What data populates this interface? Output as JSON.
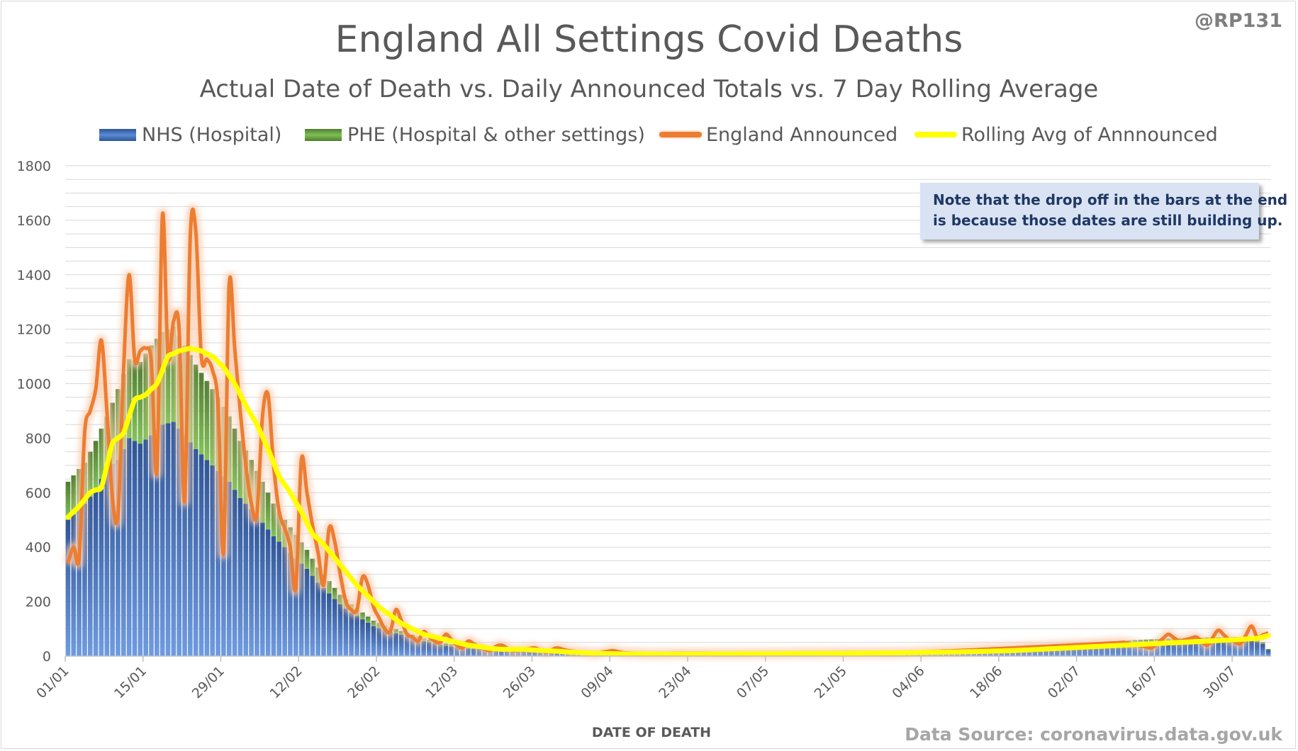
{
  "handle": "@RP131",
  "source": "Data Source: coronavirus.data.gov.uk",
  "note": {
    "line1": "Note that the drop off in the bars at the end",
    "line2": "is because those dates are still building up."
  },
  "colors": {
    "nhs": "#4472c4",
    "phe": "#70ad47",
    "announced": "#ed7d31",
    "rolling": "#ffff00",
    "grid": "#d9d9d9"
  },
  "chart_data": {
    "type": "bar",
    "title": "England All Settings Covid Deaths",
    "subtitle": "Actual Date of Death vs. Daily Announced Totals vs. 7 Day Rolling Average",
    "xlabel": "DATE OF DEATH",
    "ylabel": "",
    "ylim": [
      0,
      1800
    ],
    "yticks": [
      0,
      200,
      400,
      600,
      800,
      1000,
      1200,
      1400,
      1600,
      1800
    ],
    "grid": true,
    "legend_position": "top",
    "legend": [
      "NHS (Hospital)",
      "PHE (Hospital & other settings)",
      "England Announced",
      "Rolling Avg of Annnounced"
    ],
    "x_tick_labels": [
      "01/01",
      "15/01",
      "29/01",
      "12/02",
      "26/02",
      "12/03",
      "26/03",
      "09/04",
      "23/04",
      "07/05",
      "21/05",
      "04/06",
      "18/06",
      "02/07",
      "16/07",
      "30/07"
    ],
    "x_tick_step_days": 14,
    "series": [
      {
        "name": "NHS (Hospital)",
        "type": "bar",
        "stack": "deaths",
        "keyframes": [
          [
            0,
            500
          ],
          [
            3,
            560
          ],
          [
            5,
            610
          ],
          [
            7,
            690
          ],
          [
            9,
            720
          ],
          [
            11,
            800
          ],
          [
            13,
            780
          ],
          [
            15,
            810
          ],
          [
            17,
            850
          ],
          [
            19,
            860
          ],
          [
            21,
            810
          ],
          [
            23,
            760
          ],
          [
            25,
            720
          ],
          [
            27,
            680
          ],
          [
            29,
            640
          ],
          [
            31,
            580
          ],
          [
            33,
            540
          ],
          [
            35,
            490
          ],
          [
            37,
            440
          ],
          [
            39,
            400
          ],
          [
            41,
            360
          ],
          [
            43,
            320
          ],
          [
            45,
            270
          ],
          [
            47,
            230
          ],
          [
            49,
            190
          ],
          [
            51,
            160
          ],
          [
            53,
            135
          ],
          [
            55,
            110
          ],
          [
            57,
            95
          ],
          [
            60,
            78
          ],
          [
            64,
            55
          ],
          [
            68,
            38
          ],
          [
            72,
            28
          ],
          [
            76,
            24
          ],
          [
            80,
            20
          ],
          [
            85,
            15
          ],
          [
            90,
            12
          ],
          [
            100,
            8
          ],
          [
            110,
            7
          ],
          [
            120,
            7
          ],
          [
            130,
            8
          ],
          [
            140,
            9
          ],
          [
            150,
            12
          ],
          [
            160,
            20
          ],
          [
            170,
            30
          ],
          [
            180,
            40
          ],
          [
            190,
            50
          ],
          [
            200,
            58
          ],
          [
            210,
            62
          ],
          [
            213,
            60
          ],
          [
            215,
            45
          ],
          [
            216,
            22
          ]
        ]
      },
      {
        "name": "PHE (Hospital & other settings)",
        "type": "bar",
        "stack": "deaths",
        "keyframes": [
          [
            0,
            140
          ],
          [
            3,
            150
          ],
          [
            5,
            180
          ],
          [
            7,
            190
          ],
          [
            9,
            260
          ],
          [
            11,
            290
          ],
          [
            13,
            300
          ],
          [
            15,
            330
          ],
          [
            17,
            340
          ],
          [
            19,
            350
          ],
          [
            21,
            330
          ],
          [
            23,
            310
          ],
          [
            25,
            290
          ],
          [
            27,
            270
          ],
          [
            29,
            240
          ],
          [
            31,
            210
          ],
          [
            33,
            180
          ],
          [
            35,
            150
          ],
          [
            37,
            120
          ],
          [
            39,
            100
          ],
          [
            41,
            85
          ],
          [
            43,
            70
          ],
          [
            45,
            55
          ],
          [
            47,
            45
          ],
          [
            49,
            35
          ],
          [
            51,
            30
          ],
          [
            53,
            25
          ],
          [
            55,
            20
          ],
          [
            57,
            17
          ],
          [
            60,
            14
          ],
          [
            64,
            10
          ],
          [
            68,
            8
          ],
          [
            72,
            6
          ],
          [
            76,
            5
          ],
          [
            80,
            4
          ],
          [
            90,
            3
          ],
          [
            100,
            2
          ],
          [
            120,
            2
          ],
          [
            140,
            2
          ],
          [
            160,
            3
          ],
          [
            180,
            5
          ],
          [
            200,
            8
          ],
          [
            213,
            8
          ],
          [
            216,
            4
          ]
        ]
      },
      {
        "name": "England Announced",
        "type": "line",
        "keyframes": [
          [
            0,
            340
          ],
          [
            1,
            400
          ],
          [
            2,
            360
          ],
          [
            3,
            820
          ],
          [
            4,
            900
          ],
          [
            5,
            980
          ],
          [
            6,
            1160
          ],
          [
            7,
            900
          ],
          [
            8,
            580
          ],
          [
            9,
            520
          ],
          [
            10,
            1050
          ],
          [
            11,
            1400
          ],
          [
            12,
            1090
          ],
          [
            13,
            1120
          ],
          [
            14,
            1130
          ],
          [
            15,
            1080
          ],
          [
            16,
            680
          ],
          [
            17,
            1620
          ],
          [
            18,
            1100
          ],
          [
            19,
            1230
          ],
          [
            20,
            1200
          ],
          [
            21,
            570
          ],
          [
            22,
            1540
          ],
          [
            23,
            1560
          ],
          [
            24,
            1100
          ],
          [
            25,
            1090
          ],
          [
            26,
            1050
          ],
          [
            27,
            920
          ],
          [
            28,
            380
          ],
          [
            29,
            1360
          ],
          [
            30,
            1130
          ],
          [
            31,
            900
          ],
          [
            32,
            700
          ],
          [
            33,
            560
          ],
          [
            34,
            520
          ],
          [
            35,
            880
          ],
          [
            36,
            960
          ],
          [
            37,
            700
          ],
          [
            38,
            530
          ],
          [
            39,
            470
          ],
          [
            40,
            400
          ],
          [
            41,
            250
          ],
          [
            42,
            720
          ],
          [
            43,
            600
          ],
          [
            44,
            480
          ],
          [
            45,
            380
          ],
          [
            46,
            260
          ],
          [
            47,
            470
          ],
          [
            48,
            420
          ],
          [
            49,
            300
          ],
          [
            50,
            200
          ],
          [
            51,
            170
          ],
          [
            52,
            170
          ],
          [
            53,
            290
          ],
          [
            54,
            260
          ],
          [
            55,
            180
          ],
          [
            56,
            140
          ],
          [
            57,
            100
          ],
          [
            58,
            90
          ],
          [
            59,
            170
          ],
          [
            60,
            130
          ],
          [
            61,
            80
          ],
          [
            62,
            70
          ],
          [
            63,
            55
          ],
          [
            64,
            90
          ],
          [
            65,
            70
          ],
          [
            66,
            55
          ],
          [
            67,
            50
          ],
          [
            68,
            80
          ],
          [
            69,
            60
          ],
          [
            70,
            40
          ],
          [
            71,
            30
          ],
          [
            72,
            55
          ],
          [
            73,
            45
          ],
          [
            74,
            35
          ],
          [
            75,
            25
          ],
          [
            76,
            20
          ],
          [
            77,
            35
          ],
          [
            78,
            40
          ],
          [
            79,
            30
          ],
          [
            80,
            20
          ],
          [
            82,
            25
          ],
          [
            84,
            30
          ],
          [
            86,
            15
          ],
          [
            88,
            30
          ],
          [
            90,
            20
          ],
          [
            92,
            15
          ],
          [
            95,
            10
          ],
          [
            98,
            20
          ],
          [
            100,
            12
          ],
          [
            105,
            8
          ],
          [
            110,
            10
          ],
          [
            120,
            9
          ],
          [
            130,
            10
          ],
          [
            140,
            12
          ],
          [
            150,
            12
          ],
          [
            160,
            20
          ],
          [
            170,
            30
          ],
          [
            180,
            40
          ],
          [
            190,
            50
          ],
          [
            195,
            30
          ],
          [
            198,
            80
          ],
          [
            200,
            55
          ],
          [
            203,
            70
          ],
          [
            205,
            40
          ],
          [
            207,
            95
          ],
          [
            209,
            60
          ],
          [
            211,
            45
          ],
          [
            213,
            110
          ],
          [
            214,
            70
          ],
          [
            216,
            85
          ]
        ]
      },
      {
        "name": "Rolling Avg of Annnounced",
        "type": "line",
        "keyframes": [
          [
            0,
            510
          ],
          [
            2,
            550
          ],
          [
            4,
            600
          ],
          [
            6,
            620
          ],
          [
            8,
            780
          ],
          [
            10,
            820
          ],
          [
            12,
            940
          ],
          [
            14,
            960
          ],
          [
            16,
            1000
          ],
          [
            18,
            1100
          ],
          [
            20,
            1120
          ],
          [
            22,
            1130
          ],
          [
            24,
            1120
          ],
          [
            26,
            1100
          ],
          [
            28,
            1060
          ],
          [
            30,
            1000
          ],
          [
            32,
            920
          ],
          [
            34,
            850
          ],
          [
            36,
            760
          ],
          [
            38,
            660
          ],
          [
            40,
            600
          ],
          [
            42,
            530
          ],
          [
            44,
            450
          ],
          [
            46,
            410
          ],
          [
            48,
            360
          ],
          [
            50,
            310
          ],
          [
            52,
            260
          ],
          [
            54,
            220
          ],
          [
            56,
            180
          ],
          [
            58,
            150
          ],
          [
            60,
            120
          ],
          [
            62,
            100
          ],
          [
            64,
            80
          ],
          [
            66,
            70
          ],
          [
            68,
            60
          ],
          [
            70,
            50
          ],
          [
            72,
            40
          ],
          [
            74,
            35
          ],
          [
            76,
            28
          ],
          [
            78,
            25
          ],
          [
            80,
            25
          ],
          [
            82,
            25
          ],
          [
            84,
            22
          ],
          [
            86,
            20
          ],
          [
            88,
            18
          ],
          [
            90,
            15
          ],
          [
            95,
            10
          ],
          [
            100,
            8
          ],
          [
            110,
            7
          ],
          [
            120,
            8
          ],
          [
            130,
            9
          ],
          [
            140,
            10
          ],
          [
            150,
            12
          ],
          [
            160,
            15
          ],
          [
            170,
            20
          ],
          [
            180,
            30
          ],
          [
            190,
            40
          ],
          [
            200,
            50
          ],
          [
            205,
            55
          ],
          [
            210,
            60
          ],
          [
            214,
            65
          ],
          [
            216,
            75
          ]
        ]
      }
    ]
  }
}
